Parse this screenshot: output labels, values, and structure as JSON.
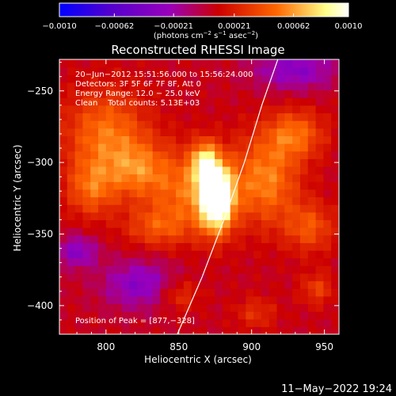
{
  "chart_data": {
    "type": "heatmap",
    "title": "Reconstructed RHESSI Image",
    "xlabel": "Heliocentric X (arcsec)",
    "ylabel": "Heliocentric Y (arcsec)",
    "xlim": [
      768,
      960
    ],
    "ylim": [
      -420,
      -228
    ],
    "x_ticks": [
      800,
      850,
      900,
      950
    ],
    "x_tick_labels": [
      "800",
      "850",
      "900",
      "950"
    ],
    "y_ticks": [
      -250,
      -300,
      -350,
      -400
    ],
    "y_tick_labels": [
      "−250",
      "−300",
      "−350",
      "−400"
    ],
    "colorbar": {
      "range": [
        -0.001,
        0.001
      ],
      "ticks": [
        -0.001,
        -0.00062,
        -0.00021,
        0.00021,
        0.00062,
        0.001
      ],
      "tick_labels": [
        "−0.0010",
        "−0.00062",
        "−0.00021",
        "0.00021",
        "0.00062",
        "0.0010"
      ],
      "colormap": [
        "#0000ff",
        "#5500cc",
        "#9900bb",
        "#cc0000",
        "#ff6600",
        "#ffff88",
        "#ffffff"
      ]
    },
    "annotations": [
      "20−Jun−2012 15:51:56.000 to 15:56:24.000",
      "Detectors: 3F 5F 6F 7F 8F, Att 0",
      "Energy Range: 12.0 − 25.0 keV",
      "Clean    Total counts: 5.13E+03"
    ],
    "peak_label": "Position of Peak = [877,−328]",
    "peak": {
      "x": 877,
      "y": -328
    },
    "limb": {
      "x": [
        849,
        866,
        881,
        895,
        907,
        918
      ],
      "y": [
        -420,
        -380,
        -340,
        -300,
        -260,
        -228
      ]
    },
    "sources": [
      {
        "x": 876,
        "y": -325,
        "sx": 8,
        "sy": 16,
        "amp": 1.0
      },
      {
        "x": 868,
        "y": -300,
        "sx": 6,
        "sy": 10,
        "amp": 0.55
      },
      {
        "x": 858,
        "y": -318,
        "sx": 20,
        "sy": 20,
        "amp": 0.4
      },
      {
        "x": 800,
        "y": -280,
        "sx": 20,
        "sy": 22,
        "amp": 0.42
      },
      {
        "x": 790,
        "y": -318,
        "sx": 12,
        "sy": 14,
        "amp": 0.35
      },
      {
        "x": 822,
        "y": -305,
        "sx": 14,
        "sy": 14,
        "amp": 0.33
      },
      {
        "x": 910,
        "y": -312,
        "sx": 16,
        "sy": 22,
        "amp": 0.45
      },
      {
        "x": 930,
        "y": -280,
        "sx": 14,
        "sy": 12,
        "amp": 0.38
      },
      {
        "x": 940,
        "y": -345,
        "sx": 12,
        "sy": 12,
        "amp": 0.32
      },
      {
        "x": 835,
        "y": -345,
        "sx": 16,
        "sy": 10,
        "amp": 0.28
      },
      {
        "x": 850,
        "y": -392,
        "sx": 10,
        "sy": 8,
        "amp": 0.25
      },
      {
        "x": 945,
        "y": -388,
        "sx": 8,
        "sy": 8,
        "amp": 0.25
      },
      {
        "x": 903,
        "y": -405,
        "sx": 10,
        "sy": 8,
        "amp": 0.2
      },
      {
        "x": 780,
        "y": -362,
        "sx": 10,
        "sy": 8,
        "amp": -0.35
      },
      {
        "x": 823,
        "y": -385,
        "sx": 18,
        "sy": 12,
        "amp": -0.35
      },
      {
        "x": 930,
        "y": -235,
        "sx": 20,
        "sy": 10,
        "amp": -0.35
      }
    ]
  },
  "footer": {
    "timestamp": "11−May−2022 19:24"
  },
  "colors": {
    "background": "#000000",
    "foreground": "#ffffff",
    "limb": "#ffffff"
  }
}
